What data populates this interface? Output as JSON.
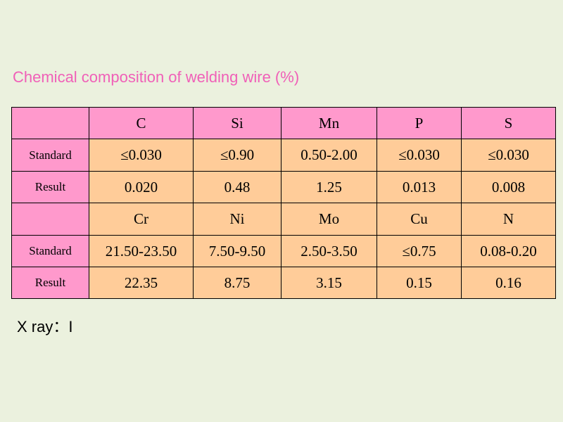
{
  "title": "Chemical composition of welding wire (%)",
  "table": {
    "rows": [
      {
        "cells": [
          "C",
          "Si",
          "Mn",
          "P",
          "S"
        ]
      },
      {
        "label": "Standard",
        "cells": [
          "≤0.030",
          "≤0.90",
          "0.50-2.00",
          "≤0.030",
          "≤0.030"
        ]
      },
      {
        "label": "Result",
        "cells": [
          "0.020",
          "0.48",
          "1.25",
          "0.013",
          "0.008"
        ]
      },
      {
        "cells": [
          "Cr",
          "Ni",
          "Mo",
          "Cu",
          "N"
        ]
      },
      {
        "label": "Standard",
        "cells": [
          "21.50-23.50",
          "7.50-9.50",
          "2.50-3.50",
          "≤0.75",
          "0.08-0.20"
        ]
      },
      {
        "label": "Result",
        "cells": [
          "22.35",
          "8.75",
          "3.15",
          "0.15",
          "0.16"
        ]
      }
    ]
  },
  "note": "X ray：I"
}
